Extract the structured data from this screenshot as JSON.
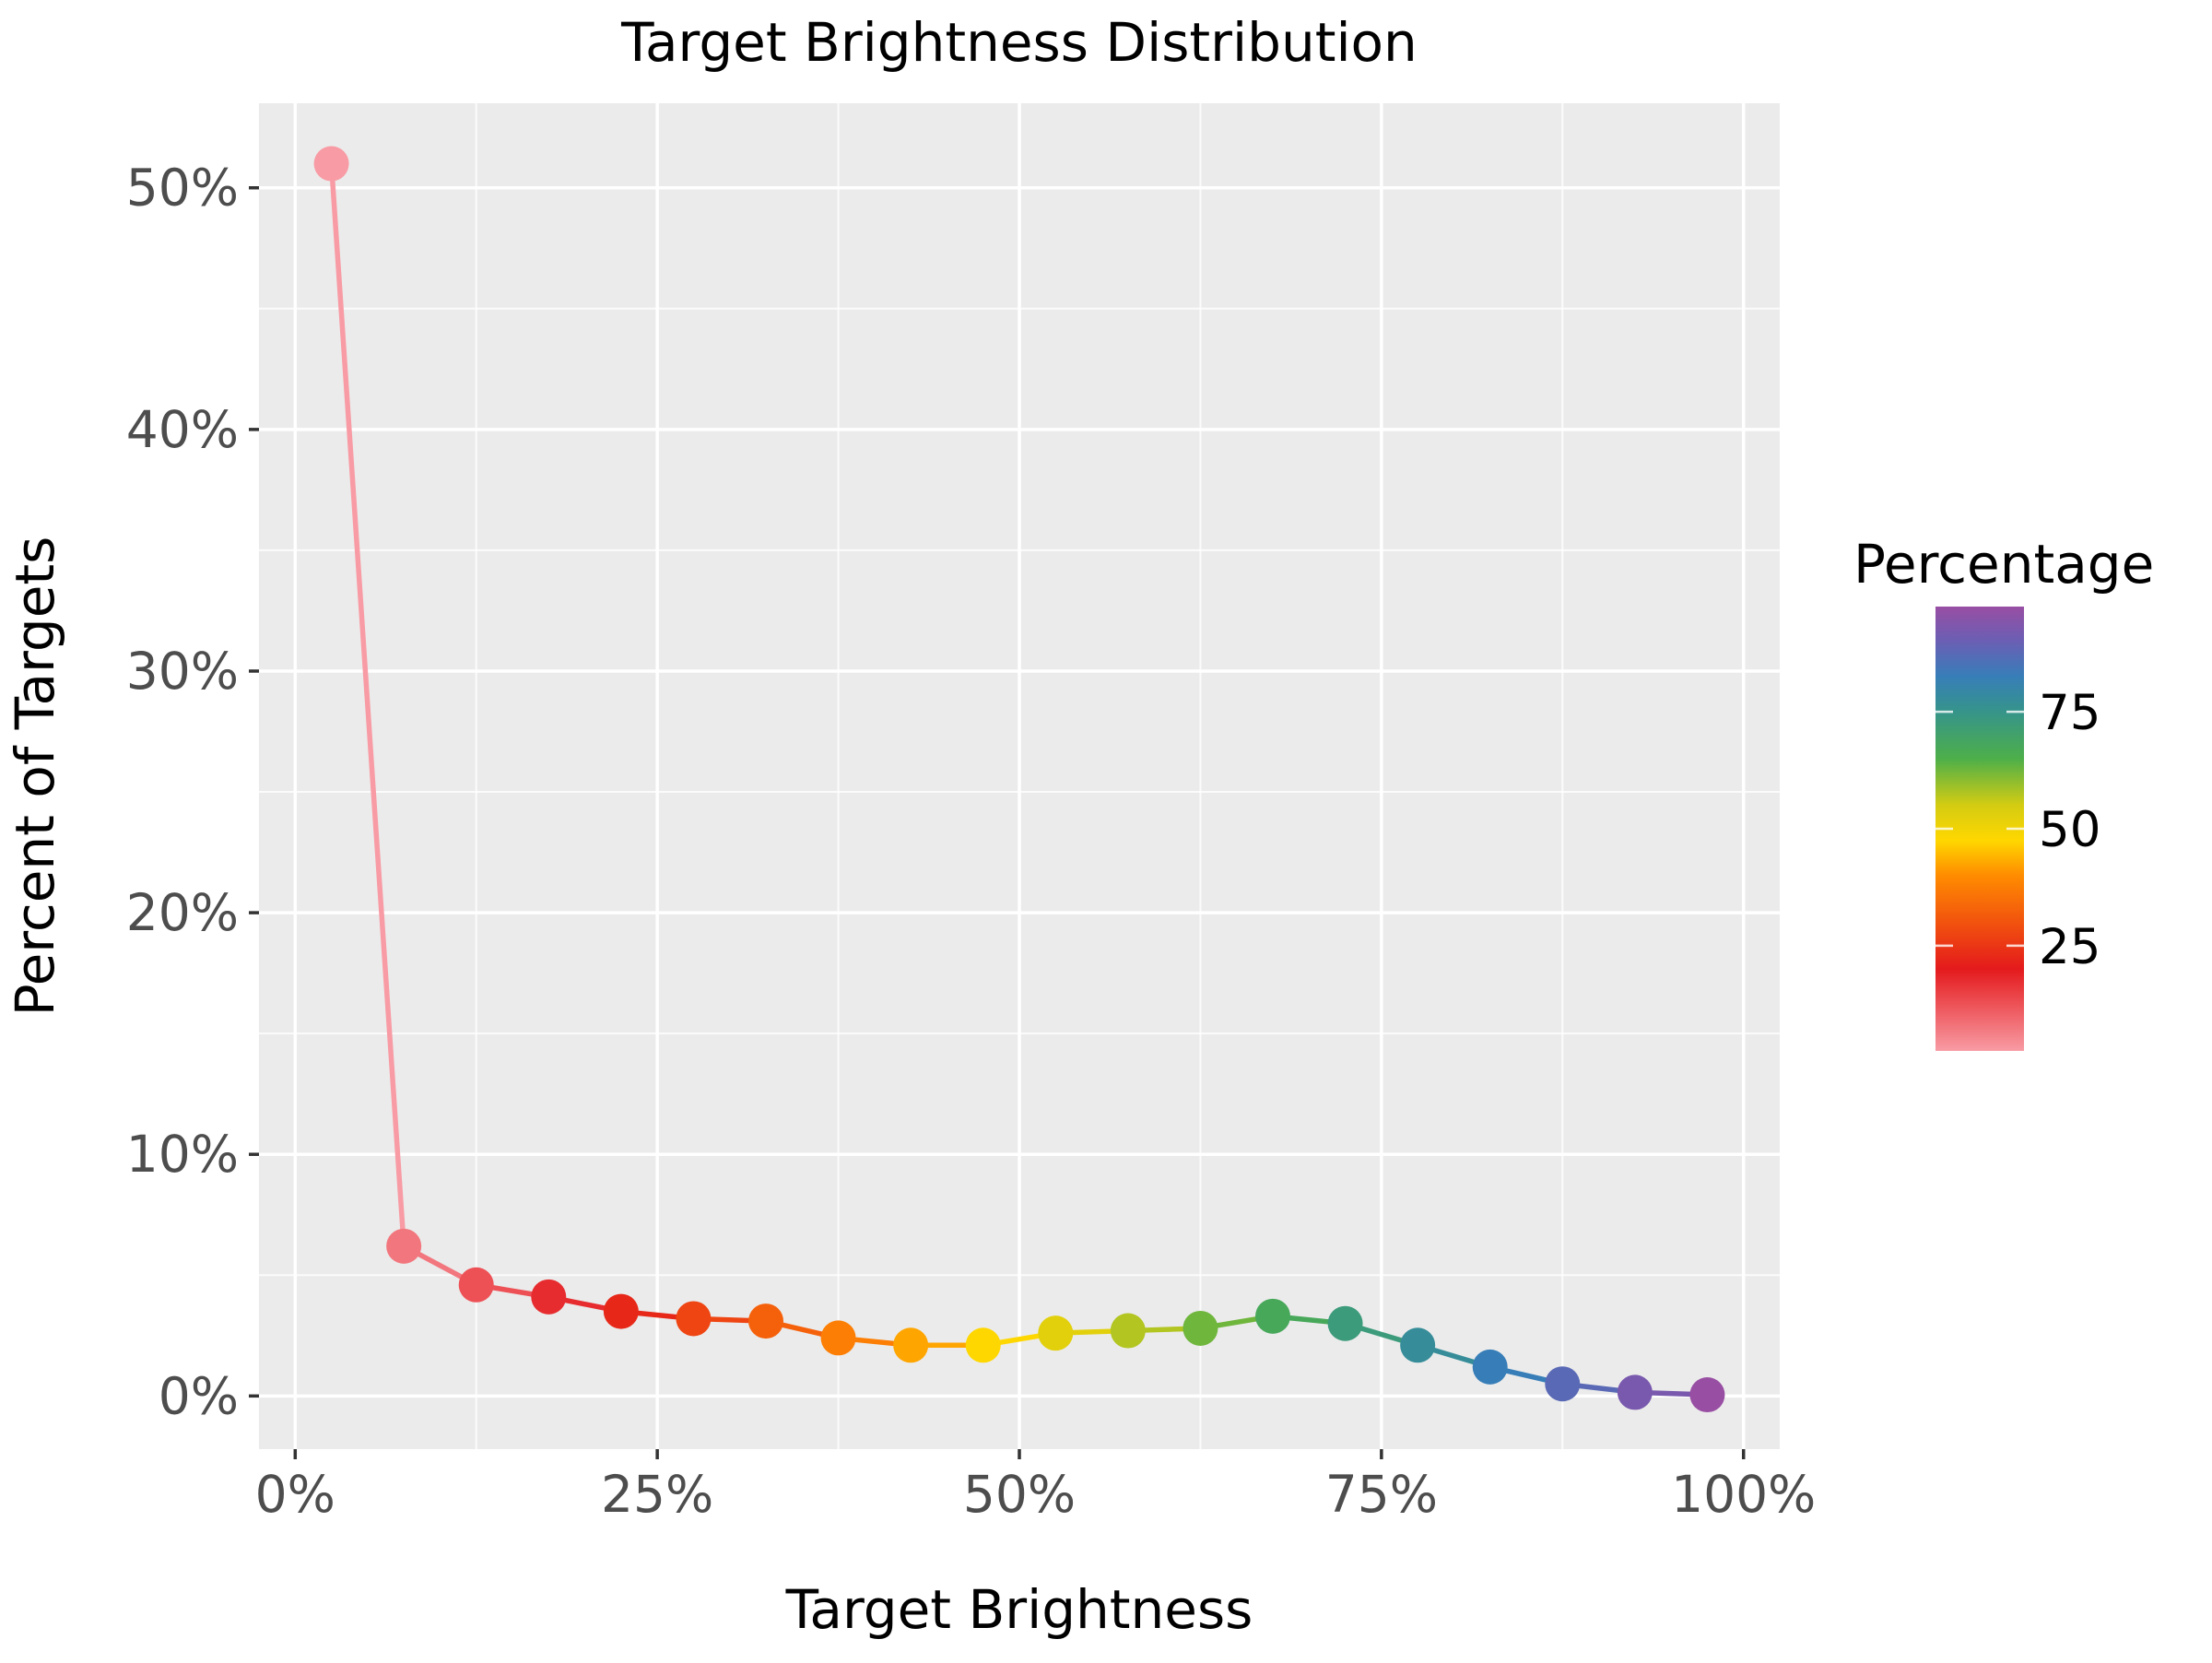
{
  "chart_data": {
    "type": "line",
    "title": "Target Brightness Distribution",
    "xlabel": "Target Brightness",
    "ylabel": "Percent of Targets",
    "xlim": [
      -2.5,
      102.5
    ],
    "ylim": [
      -2.2,
      53.5
    ],
    "x_ticks": [
      0,
      25,
      50,
      75,
      100
    ],
    "x_tick_labels": [
      "0%",
      "25%",
      "50%",
      "75%",
      "100%"
    ],
    "y_ticks": [
      0,
      10,
      20,
      30,
      40,
      50
    ],
    "y_tick_labels": [
      "0%",
      "10%",
      "20%",
      "30%",
      "40%",
      "50%"
    ],
    "grid": true,
    "x": [
      2.5,
      7.5,
      12.5,
      17.5,
      22.5,
      27.5,
      32.5,
      37.5,
      42.5,
      47.5,
      52.5,
      57.5,
      62.5,
      67.5,
      72.5,
      77.5,
      82.5,
      87.5,
      92.5,
      97.5
    ],
    "y": [
      51.0,
      6.2,
      4.6,
      4.1,
      3.5,
      3.2,
      3.1,
      2.4,
      2.1,
      2.1,
      2.6,
      2.7,
      2.8,
      3.3,
      3.0,
      2.1,
      1.2,
      0.5,
      0.15,
      0.05
    ],
    "color_legend": {
      "title": "Percentage",
      "position": "right",
      "ticks": [
        25,
        50,
        75
      ],
      "tick_labels": [
        "25",
        "50",
        "75"
      ],
      "range": [
        2.5,
        97.5
      ],
      "gradient": [
        {
          "value": 2.5,
          "color": "#f89ba4"
        },
        {
          "value": 20,
          "color": "#e41a1c"
        },
        {
          "value": 40,
          "color": "#ff8c00"
        },
        {
          "value": 47.5,
          "color": "#ffd700"
        },
        {
          "value": 55,
          "color": "#d4cc12"
        },
        {
          "value": 65,
          "color": "#4daf4a"
        },
        {
          "value": 75,
          "color": "#36948a"
        },
        {
          "value": 82.5,
          "color": "#377eb8"
        },
        {
          "value": 90,
          "color": "#6a5fb4"
        },
        {
          "value": 97.5,
          "color": "#984ea3"
        }
      ]
    },
    "colors": {
      "panel_background": "#ebebeb",
      "grid_major": "#ffffff",
      "grid_minor": "#f5f5f5"
    }
  }
}
